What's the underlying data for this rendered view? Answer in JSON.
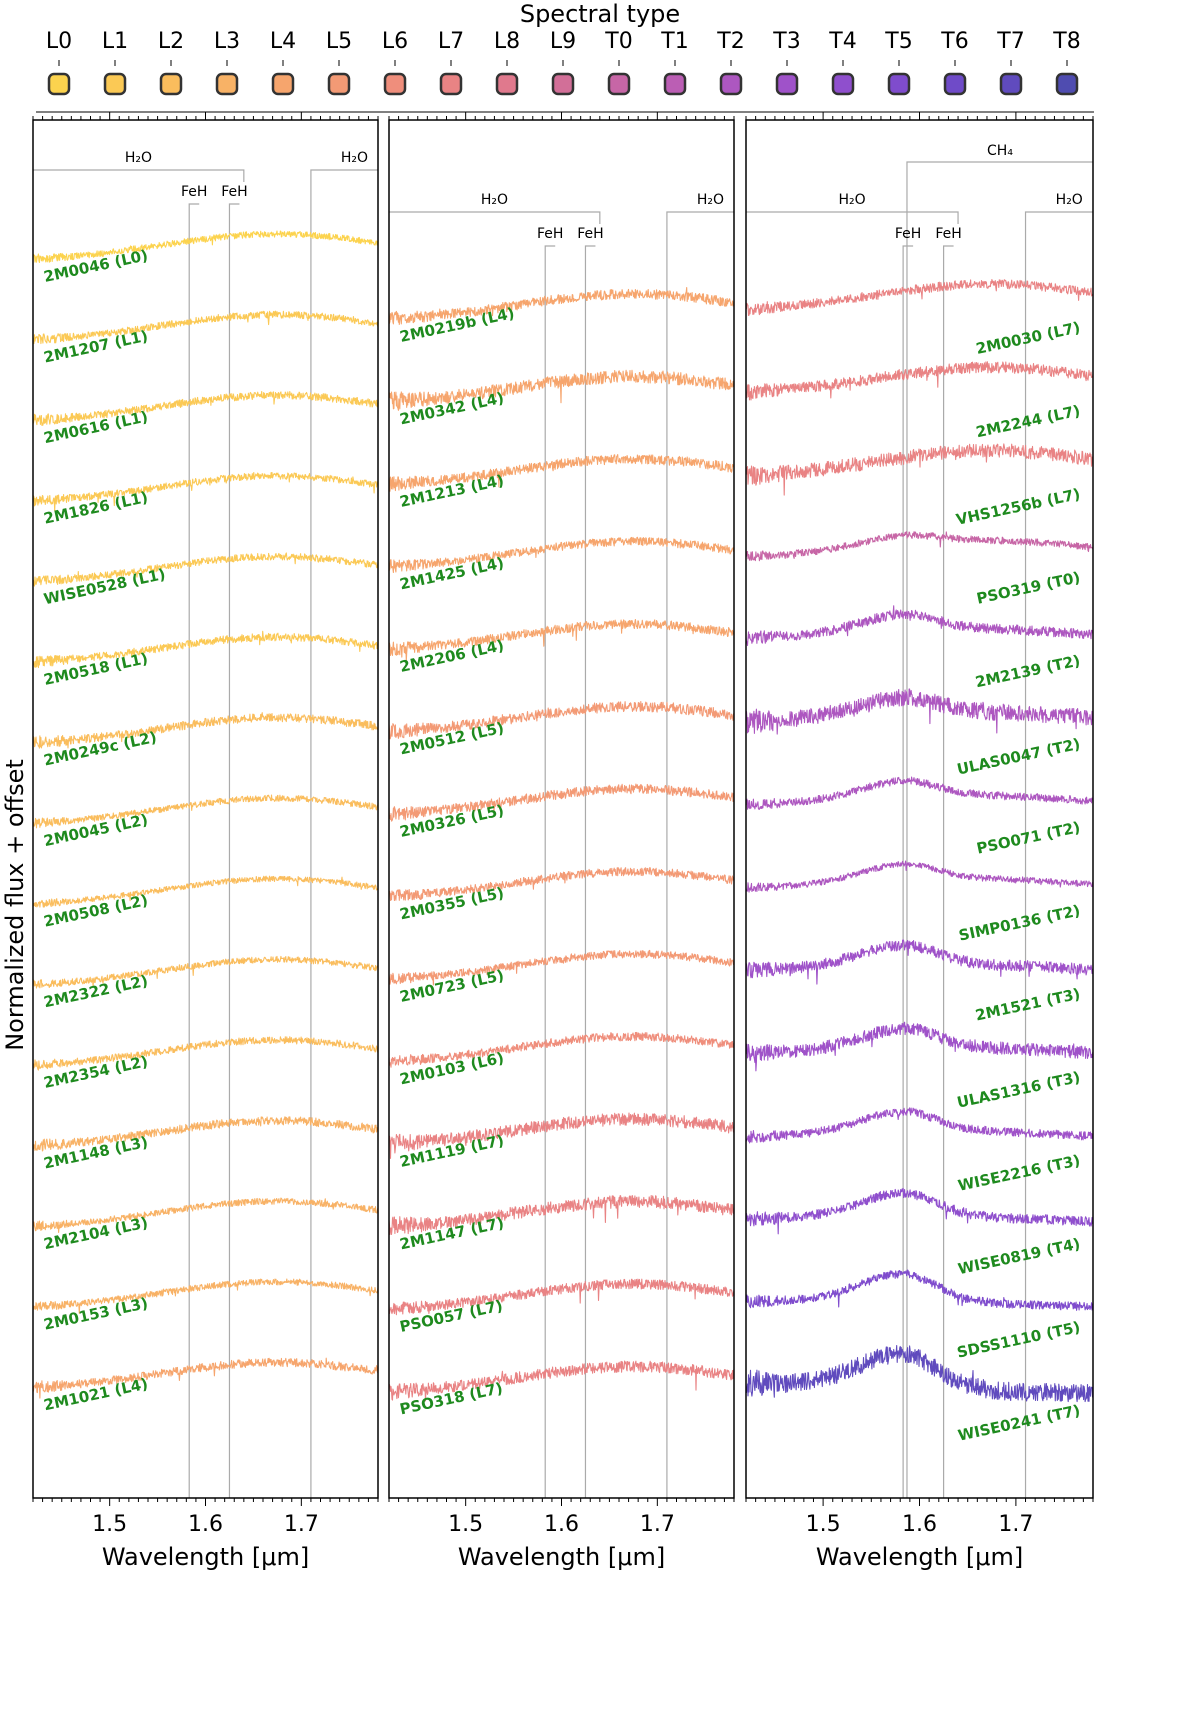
{
  "chart_data": {
    "type": "line",
    "ylabel": "Normalized flux + offset",
    "colorbar": {
      "title": "Spectral type",
      "types": [
        "L0",
        "L1",
        "L2",
        "L3",
        "L4",
        "L5",
        "L6",
        "L7",
        "L8",
        "L9",
        "T0",
        "T1",
        "T2",
        "T3",
        "T4",
        "T5",
        "T6",
        "T7",
        "T8"
      ],
      "colors": [
        "#fcd34e",
        "#fbc955",
        "#fabd5d",
        "#f8b266",
        "#f6a56d",
        "#f39a75",
        "#ef8e7c",
        "#e98384",
        "#e0798d",
        "#d26f98",
        "#c766a6",
        "#bb5eb4",
        "#ad57c0",
        "#9f52c9",
        "#8f4fcd",
        "#7f4ccd",
        "#6f4bc8",
        "#604bbe",
        "#4f4cb0"
      ]
    },
    "panels": [
      {
        "xlabel": "Wavelength [μm]",
        "xlim": [
          1.42,
          1.78
        ],
        "xticks": [
          "1.5",
          "1.6",
          "1.7"
        ],
        "features": {
          "water": [
            {
              "label": "H₂O",
              "x0": 1.42,
              "x1": 1.64
            },
            {
              "label": "H₂O",
              "x0": 1.71,
              "x1": 1.78
            }
          ],
          "feh": [
            {
              "label": "FeH",
              "x": 1.583
            },
            {
              "label": "FeH",
              "x": 1.625
            }
          ]
        },
        "series": [
          {
            "name": "2M0046 (L0)",
            "sptype": "L0",
            "noise": 0.45
          },
          {
            "name": "2M1207 (L1)",
            "sptype": "L1",
            "noise": 0.5
          },
          {
            "name": "2M0616 (L1)",
            "sptype": "L1",
            "noise": 0.55
          },
          {
            "name": "2M1826 (L1)",
            "sptype": "L1",
            "noise": 0.5
          },
          {
            "name": "WISE0528 (L1)",
            "sptype": "L1",
            "noise": 0.5
          },
          {
            "name": "2M0518 (L1)",
            "sptype": "L1",
            "noise": 0.55
          },
          {
            "name": "2M0249c (L2)",
            "sptype": "L2",
            "noise": 0.6
          },
          {
            "name": "2M0045 (L2)",
            "sptype": "L2",
            "noise": 0.45
          },
          {
            "name": "2M0508 (L2)",
            "sptype": "L2",
            "noise": 0.4
          },
          {
            "name": "2M2322 (L2)",
            "sptype": "L2",
            "noise": 0.45
          },
          {
            "name": "2M2354 (L2)",
            "sptype": "L2",
            "noise": 0.5
          },
          {
            "name": "2M1148 (L3)",
            "sptype": "L3",
            "noise": 0.6
          },
          {
            "name": "2M2104 (L3)",
            "sptype": "L3",
            "noise": 0.45
          },
          {
            "name": "2M0153 (L3)",
            "sptype": "L3",
            "noise": 0.45
          },
          {
            "name": "2M1021 (L4)",
            "sptype": "L4",
            "noise": 0.6
          }
        ]
      },
      {
        "xlabel": "Wavelength [μm]",
        "xlim": [
          1.42,
          1.78
        ],
        "xticks": [
          "1.5",
          "1.6",
          "1.7"
        ],
        "features": {
          "water": [
            {
              "label": "H₂O",
              "x0": 1.42,
              "x1": 1.64
            },
            {
              "label": "H₂O",
              "x0": 1.71,
              "x1": 1.78
            }
          ],
          "feh": [
            {
              "label": "FeH",
              "x": 1.583
            },
            {
              "label": "FeH",
              "x": 1.625
            }
          ]
        },
        "series": [
          {
            "name": "2M0219b (L4)",
            "sptype": "L4",
            "noise": 0.7
          },
          {
            "name": "2M0342 (L4)",
            "sptype": "L4",
            "noise": 0.9
          },
          {
            "name": "2M1213 (L4)",
            "sptype": "L4",
            "noise": 0.7
          },
          {
            "name": "2M1425 (L4)",
            "sptype": "L4",
            "noise": 0.6
          },
          {
            "name": "2M2206 (L4)",
            "sptype": "L4",
            "noise": 0.65
          },
          {
            "name": "2M0512 (L5)",
            "sptype": "L5",
            "noise": 0.75
          },
          {
            "name": "2M0326 (L5)",
            "sptype": "L5",
            "noise": 0.7
          },
          {
            "name": "2M0355 (L5)",
            "sptype": "L5",
            "noise": 0.6
          },
          {
            "name": "2M0723 (L5)",
            "sptype": "L5",
            "noise": 0.55
          },
          {
            "name": "2M0103 (L6)",
            "sptype": "L6",
            "noise": 0.6
          },
          {
            "name": "2M1119 (L7)",
            "sptype": "L7",
            "noise": 0.9
          },
          {
            "name": "2M1147 (L7)",
            "sptype": "L7",
            "noise": 0.9
          },
          {
            "name": "PSO057 (L7)",
            "sptype": "L7",
            "noise": 0.7
          },
          {
            "name": "PSO318 (L7)",
            "sptype": "L7",
            "noise": 0.8
          }
        ]
      },
      {
        "xlabel": "Wavelength [μm]",
        "xlim": [
          1.42,
          1.78
        ],
        "xticks": [
          "1.5",
          "1.6",
          "1.7"
        ],
        "features": {
          "water": [
            {
              "label": "H₂O",
              "x0": 1.42,
              "x1": 1.64
            },
            {
              "label": "H₂O",
              "x0": 1.71,
              "x1": 1.78
            }
          ],
          "methane": {
            "label": "CH₄",
            "x0": 1.587,
            "x1": 1.78
          },
          "feh": [
            {
              "label": "FeH",
              "x": 1.583
            },
            {
              "label": "FeH",
              "x": 1.625
            }
          ]
        },
        "series": [
          {
            "name": "2M0030 (L7)",
            "sptype": "L7",
            "noise": 0.65
          },
          {
            "name": "2M2244 (L7)",
            "sptype": "L7",
            "noise": 0.8
          },
          {
            "name": "VHS1256b (L7)",
            "sptype": "L7",
            "noise": 1.0
          },
          {
            "name": "PSO319 (T0)",
            "sptype": "T0",
            "noise": 0.5
          },
          {
            "name": "2M2139 (T2)",
            "sptype": "T2",
            "noise": 0.7
          },
          {
            "name": "ULAS0047 (T2)",
            "sptype": "T2",
            "noise": 1.2
          },
          {
            "name": "PSO071 (T2)",
            "sptype": "T2",
            "noise": 0.55
          },
          {
            "name": "SIMP0136 (T2)",
            "sptype": "T2",
            "noise": 0.45
          },
          {
            "name": "2M1521 (T3)",
            "sptype": "T3",
            "noise": 0.8
          },
          {
            "name": "ULAS1316 (T3)",
            "sptype": "T3",
            "noise": 0.9
          },
          {
            "name": "WISE2216 (T3)",
            "sptype": "T3",
            "noise": 0.6
          },
          {
            "name": "WISE0819 (T4)",
            "sptype": "T4",
            "noise": 0.7
          },
          {
            "name": "SDSS1110 (T5)",
            "sptype": "T5",
            "noise": 0.6
          },
          {
            "name": "WISE0241 (T7)",
            "sptype": "T7",
            "noise": 1.3
          }
        ]
      }
    ]
  }
}
